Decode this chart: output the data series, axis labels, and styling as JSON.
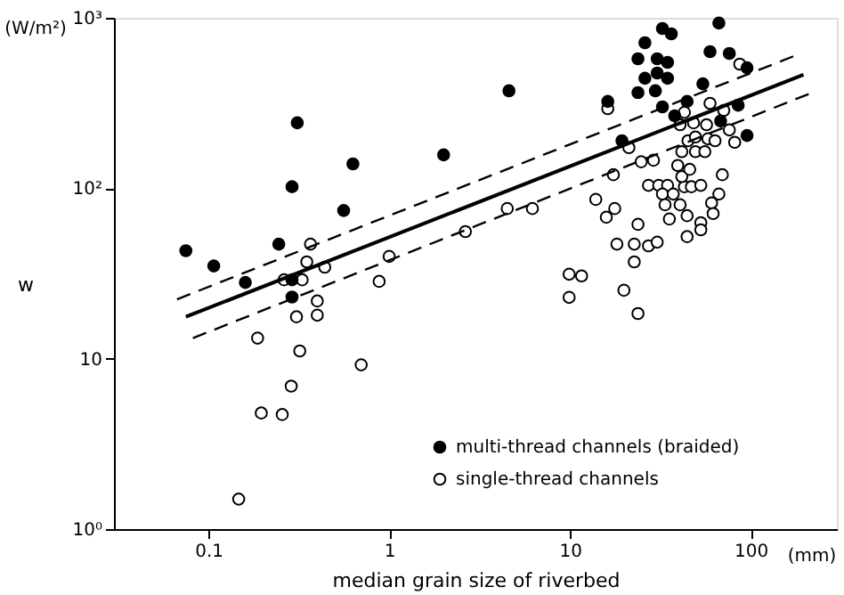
{
  "chart_data": {
    "type": "scatter",
    "xlabel": "median grain size of riverbed",
    "ylabel": "w",
    "annotations": [
      "(W/m²)",
      "(mm)"
    ],
    "log": "xy",
    "xlim": [
      0.03,
      300
    ],
    "ylim": [
      1,
      1000
    ],
    "xticks": [
      0.1,
      1,
      10,
      100
    ],
    "yticks": [
      {
        "value": 1,
        "label": "10⁰"
      },
      10,
      {
        "value": 100,
        "label": "10²"
      },
      {
        "value": 1000,
        "label": "10³"
      }
    ],
    "grid": false,
    "legend": "bottom right",
    "marker": "circle",
    "series": [
      {
        "name": "multi-thread channels (braided)",
        "type": "scatter",
        "color": "#000000",
        "x": [
          0.075,
          0.107,
          0.16,
          0.245,
          0.29,
          0.31,
          0.29,
          0.29,
          0.56,
          0.63,
          2.0,
          4.6,
          16.2,
          19.4,
          26,
          23.8,
          30.4,
          34.7,
          26,
          30.4,
          34.7,
          23.8,
          29.7,
          32.5,
          36.4,
          32.5,
          38,
          44.5,
          54.4,
          59.6,
          66.7,
          76.2,
          95.5,
          85.3,
          68.2,
          95.5
        ],
        "values": [
          43,
          35,
          28,
          47,
          102,
          242,
          29,
          23,
          74,
          139,
          157,
          373,
          323,
          190,
          714,
          575,
          575,
          548,
          442,
          474,
          442,
          364,
          373,
          865,
          805,
          300,
          266,
          323,
          410,
          633,
          931,
          618,
          509,
          307,
          248,
          204
        ]
      },
      {
        "name": "single-thread channels",
        "type": "scatter",
        "color": "#ffffff",
        "x": [
          0.367,
          0.35,
          0.44,
          0.262,
          0.33,
          0.88,
          1.0,
          0.307,
          0.4,
          0.4,
          0.187,
          0.32,
          0.7,
          0.287,
          0.196,
          0.256,
          0.147,
          2.64,
          4.5,
          6.2,
          16.2,
          13.9,
          17.4,
          21.2,
          17.7,
          15.9,
          23.8,
          18.2,
          22.7,
          27.2,
          30.4,
          22.7,
          9.9,
          11.6,
          9.9,
          19.9,
          23.8,
          24.8,
          29,
          27.2,
          31,
          34.7,
          32.5,
          37.3,
          33.6,
          40.7,
          35.5,
          44.5,
          43,
          47,
          53,
          41.6,
          46,
          39.5,
          41.6,
          49.5,
          55.8,
          45,
          49.5,
          58,
          63.5,
          57,
          48.3,
          40.7,
          43,
          59.6,
          71,
          76.2,
          81.6,
          69.7,
          66.7,
          60.8,
          62,
          53,
          53,
          44.5,
          87
        ],
        "values": [
          47,
          37,
          34.4,
          29,
          29,
          28.4,
          39.8,
          17.6,
          21.8,
          18,
          13.2,
          11.1,
          9.2,
          6.9,
          4.8,
          4.7,
          1.5,
          55.7,
          76,
          76,
          293,
          86,
          120,
          173,
          76,
          67.6,
          61.4,
          47,
          47,
          45.9,
          48.3,
          37,
          31.3,
          30.6,
          22.9,
          25.2,
          18.4,
          143,
          146,
          104,
          104,
          104,
          92.5,
          92.5,
          80,
          80,
          66,
          69,
          102,
          102,
          104,
          117,
          129,
          136,
          164,
          164,
          164,
          190,
          200,
          195,
          190,
          236,
          242,
          236,
          279,
          315,
          286,
          220,
          186,
          120,
          92.5,
          82,
          71,
          62.8,
          57,
          52,
          535
        ]
      },
      {
        "type": "line",
        "color": "#000000",
        "line_style": "solid",
        "marker": "none",
        "x": [
          0.075,
          196
        ],
        "values": [
          17.6,
          463
        ]
      },
      {
        "type": "line",
        "color": "#000000",
        "line_style": "dashed",
        "marker": "none",
        "x": [
          0.067,
          179
        ],
        "values": [
          22.3,
          604
        ]
      },
      {
        "type": "line",
        "color": "#000000",
        "line_style": "dashed",
        "marker": "none",
        "x": [
          0.082,
          219
        ],
        "values": [
          13.2,
          364
        ]
      }
    ]
  }
}
